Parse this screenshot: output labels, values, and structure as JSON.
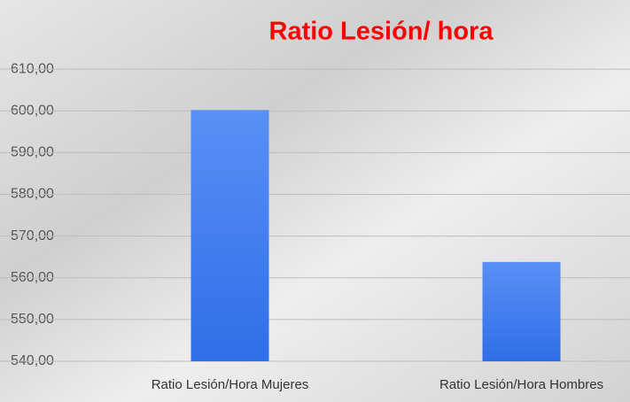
{
  "chart_data": {
    "type": "bar",
    "title": "Ratio Lesión/ hora",
    "categories": [
      "Ratio Lesión/Hora Mujeres",
      "Ratio Lesión/Hora Hombres"
    ],
    "values": [
      600.2,
      563.8
    ],
    "color": "#3a78f0",
    "ylim": [
      540,
      620
    ],
    "yticks": [
      {
        "value": 540,
        "label": "540,00"
      },
      {
        "value": 550,
        "label": "550,00"
      },
      {
        "value": 560,
        "label": "560,00"
      },
      {
        "value": 570,
        "label": "570,00"
      },
      {
        "value": 580,
        "label": "580,00"
      },
      {
        "value": 590,
        "label": "590,00"
      },
      {
        "value": 600,
        "label": "600,00"
      },
      {
        "value": 610,
        "label": "610,00"
      }
    ],
    "grid": true
  }
}
